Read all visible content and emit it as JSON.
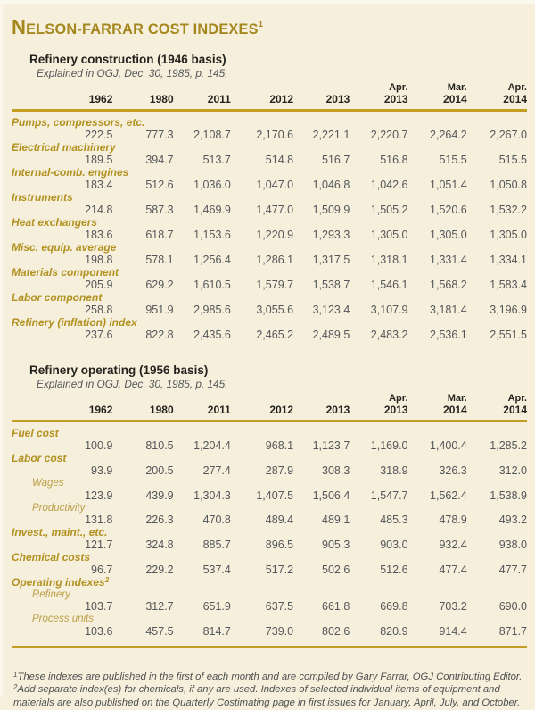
{
  "page_title": {
    "first_letter": "N",
    "rest": "elson-Farrar cost indexes",
    "superscript": "1"
  },
  "colors": {
    "background": "#f5efdb",
    "title_gold": "#a5871d",
    "rule_gold": "#c49d23",
    "row_label_gold": "#b29120",
    "sub_label_gold": "#bda04a",
    "number_gray": "#55565a",
    "heading_black": "#25231f"
  },
  "tables": [
    {
      "title": "Refinery construction (1946 basis)",
      "subtitle": "Explained in OGJ, Dec. 30, 1985, p. 145.",
      "columns": {
        "line1": [
          "",
          "",
          "",
          "",
          "",
          "Apr.",
          "Mar.",
          "Apr."
        ],
        "line2": [
          "1962",
          "1980",
          "2011",
          "2012",
          "2013",
          "2013",
          "2014",
          "2014"
        ]
      },
      "rows": [
        {
          "label": "Pumps, compressors, etc.",
          "indent": false,
          "superscript": "",
          "values": [
            "222.5",
            "777.3",
            "2,108.7",
            "2,170.6",
            "2,221.1",
            "2,220.7",
            "2,264.2",
            "2,267.0"
          ]
        },
        {
          "label": "Electrical machinery",
          "indent": false,
          "superscript": "",
          "values": [
            "189.5",
            "394.7",
            "513.7",
            "514.8",
            "516.7",
            "516.8",
            "515.5",
            "515.5"
          ]
        },
        {
          "label": "Internal-comb. engines",
          "indent": false,
          "superscript": "",
          "values": [
            "183.4",
            "512.6",
            "1,036.0",
            "1,047.0",
            "1,046.8",
            "1,042.6",
            "1,051.4",
            "1,050.8"
          ]
        },
        {
          "label": "Instruments",
          "indent": false,
          "superscript": "",
          "values": [
            "214.8",
            "587.3",
            "1,469.9",
            "1,477.0",
            "1,509.9",
            "1,505.2",
            "1,520.6",
            "1,532.2"
          ]
        },
        {
          "label": "Heat exchangers",
          "indent": false,
          "superscript": "",
          "values": [
            "183.6",
            "618.7",
            "1,153.6",
            "1,220.9",
            "1,293.3",
            "1,305.0",
            "1,305.0",
            "1,305.0"
          ]
        },
        {
          "label": "Misc. equip. average",
          "indent": false,
          "superscript": "",
          "values": [
            "198.8",
            "578.1",
            "1,256.4",
            "1,286.1",
            "1,317.5",
            "1,318.1",
            "1,331.4",
            "1,334.1"
          ]
        },
        {
          "label": "Materials component",
          "indent": false,
          "superscript": "",
          "values": [
            "205.9",
            "629.2",
            "1,610.5",
            "1,579.7",
            "1,538.7",
            "1,546.1",
            "1,568.2",
            "1,583.4"
          ]
        },
        {
          "label": "Labor component",
          "indent": false,
          "superscript": "",
          "values": [
            "258.8",
            "951.9",
            "2,985.6",
            "3,055.6",
            "3,123.4",
            "3,107.9",
            "3,181.4",
            "3,196.9"
          ]
        },
        {
          "label": "Refinery (inflation) index",
          "indent": false,
          "superscript": "",
          "values": [
            "237.6",
            "822.8",
            "2,435.6",
            "2,465.2",
            "2,489.5",
            "2,483.2",
            "2,536.1",
            "2,551.5"
          ]
        }
      ]
    },
    {
      "title": "Refinery operating (1956 basis)",
      "subtitle": "Explained in OGJ, Dec. 30, 1985, p. 145.",
      "columns": {
        "line1": [
          "",
          "",
          "",
          "",
          "",
          "Apr.",
          "Mar.",
          "Apr."
        ],
        "line2": [
          "1962",
          "1980",
          "2011",
          "2012",
          "2013",
          "2013",
          "2014",
          "2014"
        ]
      },
      "rows": [
        {
          "label": "Fuel cost",
          "indent": false,
          "superscript": "",
          "values": [
            "100.9",
            "810.5",
            "1,204.4",
            "968.1",
            "1,123.7",
            "1,169.0",
            "1,400.4",
            "1,285.2"
          ]
        },
        {
          "label": "Labor cost",
          "indent": false,
          "superscript": "",
          "values": [
            "93.9",
            "200.5",
            "277.4",
            "287.9",
            "308.3",
            "318.9",
            "326.3",
            "312.0"
          ]
        },
        {
          "label": "Wages",
          "indent": true,
          "superscript": "",
          "values": [
            "123.9",
            "439.9",
            "1,304.3",
            "1,407.5",
            "1,506.4",
            "1,547.7",
            "1,562.4",
            "1,538.9"
          ]
        },
        {
          "label": "Productivity",
          "indent": true,
          "superscript": "",
          "values": [
            "131.8",
            "226.3",
            "470.8",
            "489.4",
            "489.1",
            "485.3",
            "478.9",
            "493.2"
          ]
        },
        {
          "label": "Invest., maint., etc.",
          "indent": false,
          "superscript": "",
          "values": [
            "121.7",
            "324.8",
            "885.7",
            "896.5",
            "905.3",
            "903.0",
            "932.4",
            "938.0"
          ]
        },
        {
          "label": "Chemical costs",
          "indent": false,
          "superscript": "",
          "values": [
            "96.7",
            "229.2",
            "537.4",
            "517.2",
            "502.6",
            "512.6",
            "477.4",
            "477.7"
          ]
        },
        {
          "label": "Operating indexes",
          "indent": false,
          "superscript": "2",
          "values": null
        },
        {
          "label": "Refinery",
          "indent": true,
          "superscript": "",
          "values": [
            "103.7",
            "312.7",
            "651.9",
            "637.5",
            "661.8",
            "669.8",
            "703.2",
            "690.0"
          ]
        },
        {
          "label": "Process units",
          "indent": true,
          "superscript": "",
          "values": [
            "103.6",
            "457.5",
            "814.7",
            "739.0",
            "802.6",
            "820.9",
            "914.4",
            "871.7"
          ]
        }
      ]
    }
  ],
  "footnotes": [
    {
      "superscript": "1",
      "text": "These indexes are published in the first of each month and are compiled by Gary Farrar, OGJ Contributing Editor."
    },
    {
      "superscript": "2",
      "text": "Add separate index(es) for chemicals, if any are used. Indexes of selected individual items of equipment and materials are also published on the Quarterly Costimating page in first issues for January, April, July, and October."
    }
  ]
}
